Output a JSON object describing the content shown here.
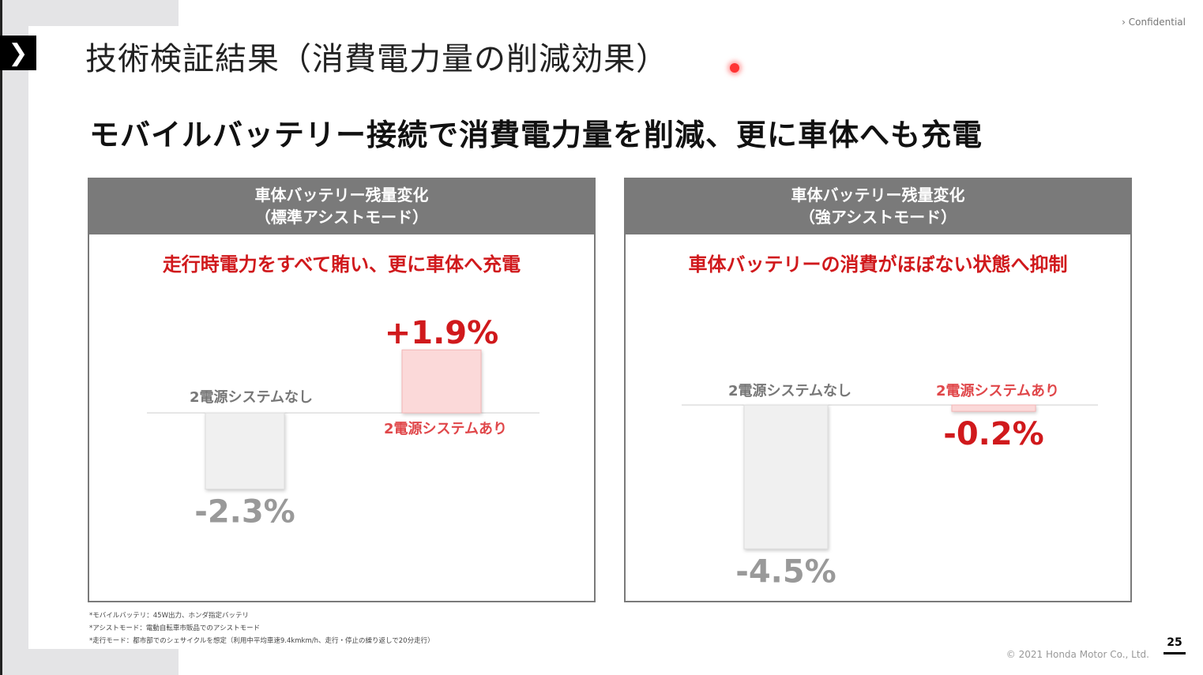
{
  "header": {
    "title": "技術検証結果（消費電力量の削減効果）",
    "confidential": "Confidential",
    "subtitle": "モバイルバッテリー接続で消費電力量を削減、更に車体へも充電"
  },
  "chart_data": [
    {
      "type": "bar",
      "title": "車体バッテリー残量変化",
      "subtitle": "（標準アシストモード）",
      "headline": "走行時電力をすべて賄い、更に車体へ充電",
      "unit": "%",
      "categories": [
        "2電源システムなし",
        "2電源システムあり"
      ],
      "values": [
        -2.3,
        1.9
      ],
      "labels": [
        "-2.3%",
        "+1.9%"
      ],
      "colors": [
        "#f0f0f0",
        "#fbd9d9"
      ],
      "label_colors": [
        "#999999",
        "#d0191c"
      ]
    },
    {
      "type": "bar",
      "title": "車体バッテリー残量変化",
      "subtitle": "（強アシストモード）",
      "headline": "車体バッテリーの消費がほぼない状態へ抑制",
      "unit": "%",
      "categories": [
        "2電源システムなし",
        "2電源システムあり"
      ],
      "values": [
        -4.5,
        -0.2
      ],
      "labels": [
        "-4.5%",
        "-0.2%"
      ],
      "colors": [
        "#f0f0f0",
        "#fbd9d9"
      ],
      "label_colors": [
        "#999999",
        "#d0191c"
      ]
    }
  ],
  "footnotes": [
    "*モバイルバッテリ：45W出力、ホンダ指定バッテリ",
    "*アシストモード：電動自転車市販品でのアシストモード",
    "*走行モード：都市部でのシェサイクルを想定（利用中平均車速9.4kmkm/h、走行・停止の繰り返しで20分走行）"
  ],
  "copyright": "© 2021 Honda Motor Co., Ltd.",
  "page_number": "25"
}
